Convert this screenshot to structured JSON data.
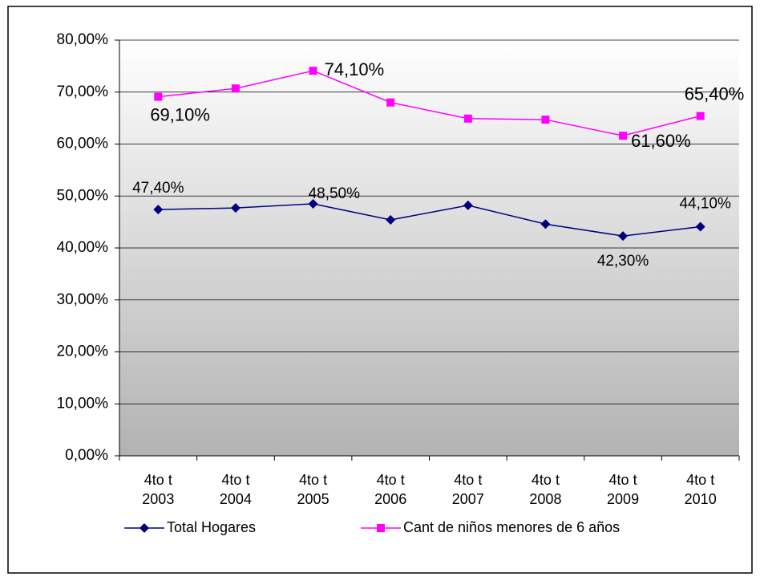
{
  "chart_data": {
    "type": "line",
    "categories": [
      "4to t\n2003",
      "4to t\n2004",
      "4to t\n2005",
      "4to t\n2006",
      "4to t\n2007",
      "4to t\n2008",
      "4to t\n2009",
      "4to t\n2010"
    ],
    "series": [
      {
        "name": "Total Hogares",
        "color": "#000080",
        "marker": "diamond",
        "values": [
          47.4,
          47.7,
          48.5,
          45.4,
          48.2,
          44.6,
          42.3,
          44.1
        ],
        "value_labels": [
          "47,40%",
          null,
          "48,50%",
          null,
          null,
          null,
          "42,30%",
          "44,10%"
        ]
      },
      {
        "name": "Cant de niños menores de 6 años",
        "color": "#ff00ff",
        "marker": "square",
        "values": [
          69.1,
          70.7,
          74.1,
          68.0,
          64.9,
          64.7,
          61.6,
          65.4
        ],
        "value_labels": [
          "69,10%",
          null,
          "74,10%",
          null,
          null,
          null,
          "61,60%",
          "65,40%"
        ]
      }
    ],
    "ylim": [
      0,
      80
    ],
    "yticks": [
      {
        "value": 0,
        "label": "0,00%"
      },
      {
        "value": 10,
        "label": "10,00%"
      },
      {
        "value": 20,
        "label": "20,00%"
      },
      {
        "value": 30,
        "label": "30,00%"
      },
      {
        "value": 40,
        "label": "40,00%"
      },
      {
        "value": 50,
        "label": "50,00%"
      },
      {
        "value": 60,
        "label": "60,00%"
      },
      {
        "value": 70,
        "label": "70,00%"
      },
      {
        "value": 80,
        "label": "80,00%"
      }
    ],
    "grid": true,
    "legend": "bottom"
  }
}
